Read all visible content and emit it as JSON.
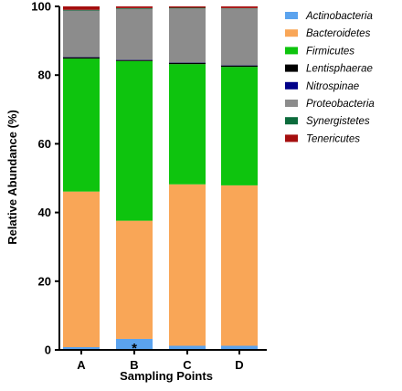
{
  "chart_data": {
    "type": "bar",
    "stacked": true,
    "title": "",
    "xlabel": "Sampling Points",
    "ylabel": "Relative Abundance (%)",
    "ylim": [
      0,
      100
    ],
    "yticks": [
      0,
      20,
      40,
      60,
      80,
      100
    ],
    "categories": [
      "A",
      "B",
      "C",
      "D"
    ],
    "legend_position": "right",
    "series": [
      {
        "name": "Actinobacteria",
        "color": "#5ba3ee",
        "values": [
          0.8,
          3.2,
          1.2,
          1.2
        ]
      },
      {
        "name": "Bacteroidetes",
        "color": "#f9a657",
        "values": [
          45.3,
          34.4,
          47.0,
          46.7
        ]
      },
      {
        "name": "Firmicutes",
        "color": "#0ec40e",
        "values": [
          38.7,
          46.5,
          35.0,
          34.5
        ]
      },
      {
        "name": "Lentisphaerae",
        "color": "#000000",
        "values": [
          0.4,
          0.3,
          0.4,
          0.4
        ]
      },
      {
        "name": "Nitrospinae",
        "color": "#000088",
        "values": [
          0.1,
          0.1,
          0.1,
          0.1
        ]
      },
      {
        "name": "Proteobacteria",
        "color": "#8c8c8c",
        "values": [
          13.5,
          14.8,
          15.7,
          16.5
        ]
      },
      {
        "name": "Synergistetes",
        "color": "#0c6b3c",
        "values": [
          0.2,
          0.2,
          0.2,
          0.1
        ]
      },
      {
        "name": "Tenericutes",
        "color": "#a50e0e",
        "values": [
          1.0,
          0.5,
          0.4,
          0.5
        ]
      }
    ],
    "annotations": [
      {
        "category": "B",
        "text": "*"
      }
    ]
  }
}
